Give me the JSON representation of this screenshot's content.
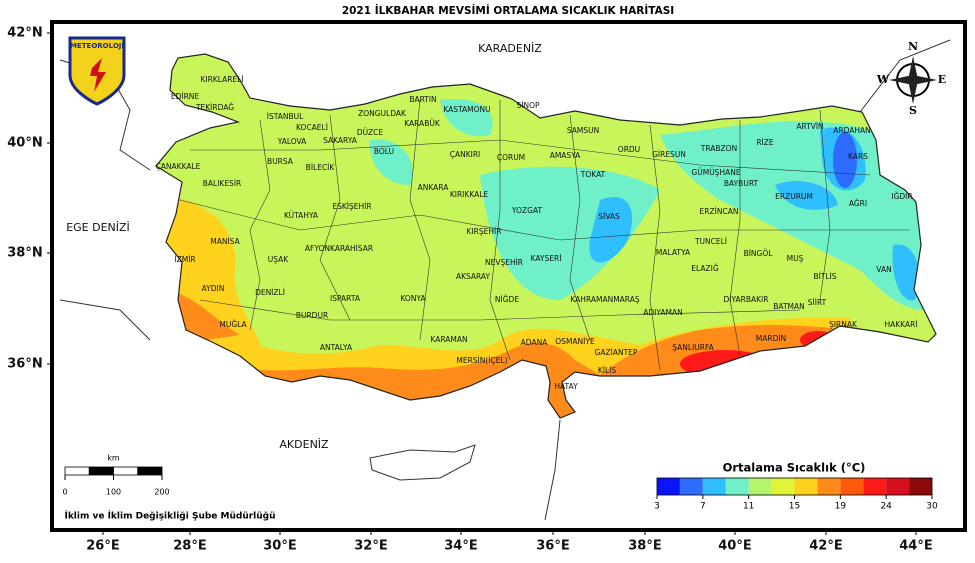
{
  "title": "2021 İLKBAHAR MEVSİMİ ORTALAMA SICAKLIK HARİTASI",
  "logo": "METEOROLOJİ",
  "lon_labels": [
    "26°E",
    "28°E",
    "30°E",
    "32°E",
    "34°E",
    "36°E",
    "38°E",
    "40°E",
    "42°E",
    "44°E"
  ],
  "lat_labels": [
    "42°N",
    "40°N",
    "38°N",
    "36°N"
  ],
  "seas": [
    "KARADENİZ",
    "EGE DENİZİ",
    "AKDENİZ"
  ],
  "compass": [
    "N",
    "S",
    "E",
    "W"
  ],
  "provinces": [
    "KIRKLARELİ",
    "EDİRNE",
    "TEKİRDAĞ",
    "İSTANBUL",
    "KOCAELİ",
    "SAKARYA",
    "YALOVA",
    "ZONGULDAK",
    "BARTIN",
    "KARABÜK",
    "KASTAMONU",
    "SİNOP",
    "DÜZCE",
    "BOLU",
    "BURSA",
    "BİLECİK",
    "ÇANAKKALE",
    "BALIKESİR",
    "ÇANKIRI",
    "ÇORUM",
    "AMASYA",
    "SAMSUN",
    "ORDU",
    "GİRESUN",
    "TRABZON",
    "RİZE",
    "ARTVİN",
    "ARDAHAN",
    "KARS",
    "TOKAT",
    "GÜMÜŞHANE",
    "BAYBURT",
    "ERZURUM",
    "AĞRI",
    "IĞDIR",
    "ESKİŞEHİR",
    "KÜTAHYA",
    "ANKARA",
    "KIRIKKALE",
    "YOZGAT",
    "SİVAS",
    "ERZİNCAN",
    "KIRŞEHİR",
    "TUNCELİ",
    "BİNGÖL",
    "MUŞ",
    "VAN",
    "BİTLİS",
    "MANİSA",
    "İZMİR",
    "UŞAK",
    "AFYONKARAHİSAR",
    "NEVŞEHİR",
    "KAYSERİ",
    "MALATYA",
    "ELAZIĞ",
    "AKSARAY",
    "AYDIN",
    "DENİZLİ",
    "ISPARTA",
    "KONYA",
    "NİĞDE",
    "KAHRAMANMARAŞ",
    "DİYARBAKIR",
    "BATMAN",
    "SİİRT",
    "ADIYAMAN",
    "ŞIRNAK",
    "HAKKARİ",
    "MUĞLA",
    "BURDUR",
    "KARAMAN",
    "ANTALYA",
    "ADANA",
    "OSMANİYE",
    "GAZİANTEP",
    "ŞANLIURFA",
    "MARDİN",
    "MERSİN(İÇEL)",
    "KİLİS",
    "HATAY"
  ],
  "legend": {
    "title": "Ortalama Sıcaklık (°C)",
    "ticks": [
      3,
      7,
      11,
      15,
      19,
      24,
      30
    ],
    "colors": [
      "#0a14ff",
      "#2e6bff",
      "#2fbfff",
      "#6ff0c8",
      "#b4f56e",
      "#dff53a",
      "#ffd21e",
      "#ff8c1a",
      "#ff5a0a",
      "#ff1a1a",
      "#d40f1e",
      "#8c0a0a"
    ]
  },
  "scale_bar": {
    "unit": "km",
    "ticks": [
      0,
      100,
      200
    ]
  },
  "footer": "İklim ve İklim Değişikliği Şube Müdürlüğü"
}
